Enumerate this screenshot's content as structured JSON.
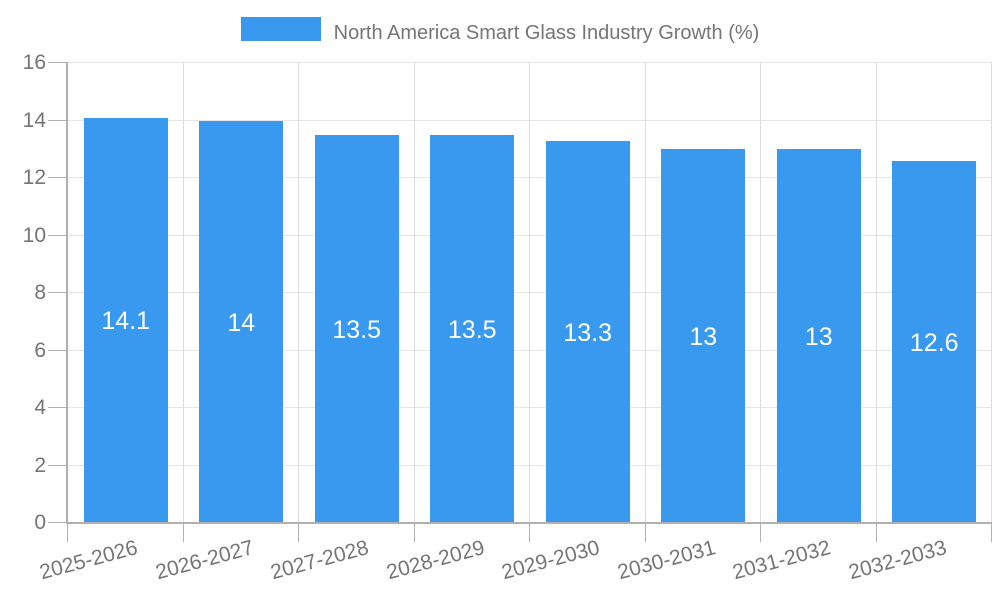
{
  "chart_data": {
    "type": "bar",
    "title": "",
    "legend": {
      "label": "North America Smart Glass Industry Growth (%)",
      "position": "top"
    },
    "categories": [
      "2025-2026",
      "2026-2027",
      "2027-2028",
      "2028-2029",
      "2029-2030",
      "2030-2031",
      "2031-2032",
      "2032-2033"
    ],
    "series": [
      {
        "name": "North America Smart Glass Industry Growth (%)",
        "values": [
          14.1,
          14,
          13.5,
          13.5,
          13.3,
          13,
          13,
          12.6
        ]
      }
    ],
    "value_labels": [
      "14.1",
      "14",
      "13.5",
      "13.5",
      "13.3",
      "13",
      "13",
      "12.6"
    ],
    "xlabel": "",
    "ylabel": "",
    "ylim": [
      0,
      16
    ],
    "ytick_step": 2,
    "yticks": [
      "0",
      "2",
      "4",
      "6",
      "8",
      "10",
      "12",
      "14",
      "16"
    ],
    "grid": true,
    "legend_swatch": "color-swatch-icon",
    "colors": {
      "bar": "#3899EE",
      "axis": "#b0b0b0",
      "gridline_horizontal": "#e6e6e6",
      "gridline_vertical": "#dcdcdc",
      "tick_text": "#757575",
      "legend_text": "#757575",
      "value_label_text": "#ffffff",
      "background": "#ffffff"
    }
  }
}
